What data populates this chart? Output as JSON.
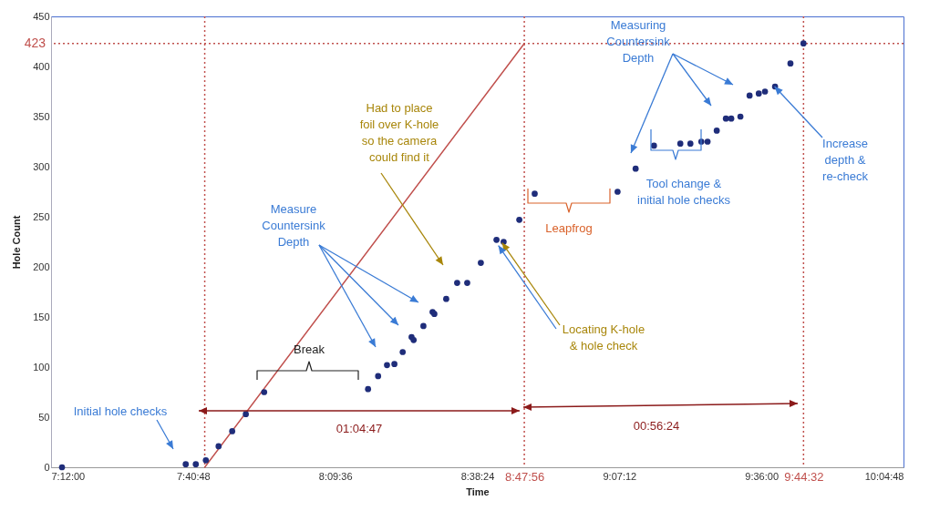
{
  "chart_data": {
    "type": "scatter",
    "xlabel": "Time",
    "ylabel": "Hole Count",
    "xlim": [
      7.2,
      10.08
    ],
    "ylim": [
      0,
      450
    ],
    "xticks": [
      {
        "value": 7.2,
        "label": "7:12:00"
      },
      {
        "value": 7.68,
        "label": "7:40:48"
      },
      {
        "value": 8.16,
        "label": "8:09:36"
      },
      {
        "value": 8.64,
        "label": "8:38:24"
      },
      {
        "value": 8.798889,
        "label": "8:47:56"
      },
      {
        "value": 9.12,
        "label": "9:07:12"
      },
      {
        "value": 9.6,
        "label": "9:36:00"
      },
      {
        "value": 9.742222,
        "label": "9:44:32"
      },
      {
        "value": 10.08,
        "label": "10:04:48"
      }
    ],
    "yticks": [
      0,
      50,
      100,
      150,
      200,
      250,
      300,
      350,
      400,
      450
    ],
    "series": [
      {
        "color": "#1f2d7a",
        "marker": "circle",
        "x": [
          7.237,
          7.655,
          7.689,
          7.723,
          7.766,
          7.812,
          7.858,
          7.92,
          8.271,
          8.305,
          8.335,
          8.36,
          8.388,
          8.418,
          8.425,
          8.458,
          8.489,
          8.495,
          8.535,
          8.572,
          8.606,
          8.652,
          8.705,
          8.729,
          8.782,
          8.834,
          9.114,
          9.175,
          9.237,
          9.326,
          9.36,
          9.397,
          9.418,
          9.449,
          9.48,
          9.498,
          9.529,
          9.56,
          9.591,
          9.612,
          9.646,
          9.698,
          9.742
        ],
        "values": [
          0,
          3,
          3,
          7,
          21,
          36,
          53,
          75,
          78,
          91,
          102,
          103,
          115,
          130,
          127,
          141,
          155,
          153,
          168,
          184,
          184,
          204,
          227,
          225,
          247,
          273,
          275,
          298,
          321,
          323,
          323,
          325,
          325,
          336,
          348,
          348,
          350,
          371,
          373,
          375,
          380,
          403,
          423
        ]
      },
      {
        "type": "line",
        "color": "#c0504d",
        "x": [
          7.7192,
          8.798889
        ],
        "values": [
          0,
          423
        ]
      }
    ],
    "ref_lines": [
      {
        "axis": "x",
        "value": 7.7192,
        "color": "#c0504d",
        "line_style": "dotted"
      },
      {
        "axis": "x",
        "value": 8.798889,
        "color": "#c0504d",
        "line_style": "dotted"
      },
      {
        "axis": "x",
        "value": 9.742222,
        "color": "#c0504d",
        "line_style": "dotted"
      },
      {
        "axis": "y",
        "value": 423,
        "label": "423",
        "color": "#c0504d",
        "line_style": "dotted"
      }
    ],
    "annotations": [
      "Initial hole checks",
      "Break",
      "Measure\nCountersink\nDepth",
      "Had to place\nfoil over K-hole\nso the camera\ncould find it",
      {
        "text": "Locating K-hole\n& hole check",
        "x": 8.729,
        "y": 225
      },
      "Leapfrog",
      "Measuring\nCountersink\nDepth",
      "Tool change &\ninitial hole checks",
      {
        "text": "Increase\ndepth &\nre-check",
        "x": 9.646,
        "y": 380
      },
      "01:04:47",
      "00:56:24"
    ]
  }
}
